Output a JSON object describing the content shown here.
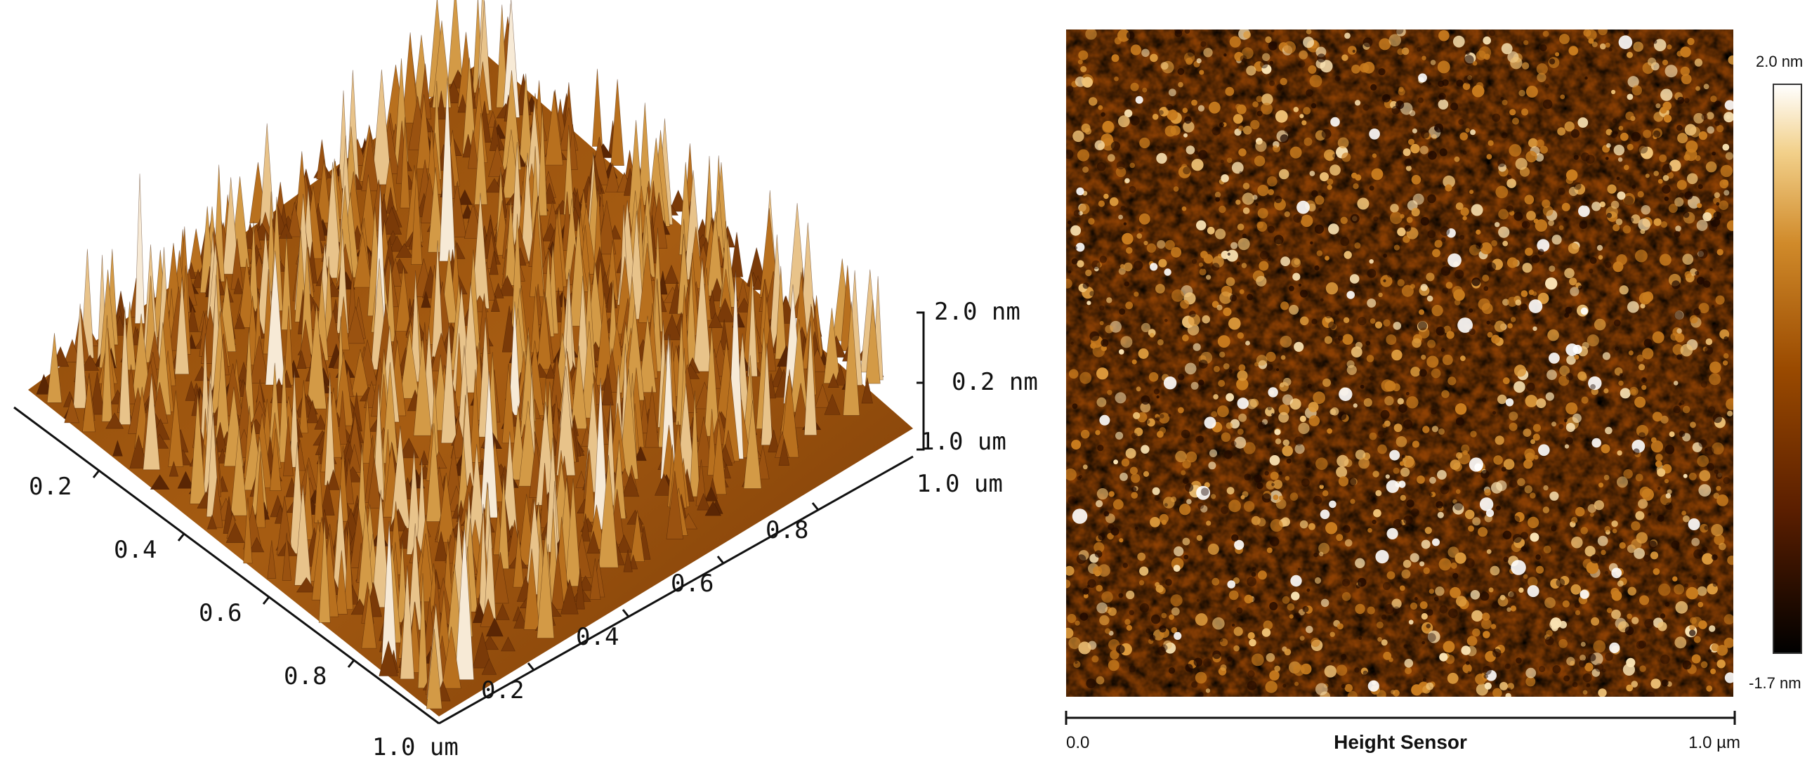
{
  "surface_3d": {
    "z_labels": [
      "2.0 nm",
      "0.2 nm"
    ],
    "y_end_label": "1.0 um",
    "x_end_label": "1.0 um",
    "left_axis_ticks": [
      "0.2",
      "0.4",
      "0.6",
      "0.8"
    ],
    "left_axis_end": "1.0 um",
    "right_axis_ticks": [
      "0.2",
      "0.4",
      "0.6",
      "0.8"
    ],
    "colors": {
      "dark": "#3a1600",
      "mid": "#a45a12",
      "light": "#e6b872",
      "peak": "#fbf2e4"
    }
  },
  "height_map": {
    "title": "Height Sensor",
    "x_start": "0.0",
    "x_end": "1.0 µm",
    "colorbar_max": "2.0 nm",
    "colorbar_min": "-1.7 nm",
    "colors": [
      "#000000",
      "#5a1e00",
      "#9a4a00",
      "#d08a2a",
      "#f2d08a",
      "#ffffff"
    ]
  }
}
